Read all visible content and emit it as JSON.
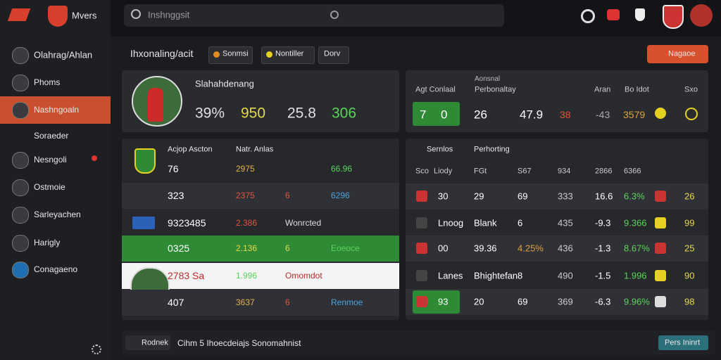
{
  "brand": "Mvers",
  "search": "Inshnggsit",
  "sidebar": [
    "Olahrag/Ahlan",
    "Phoms",
    "Nashngoaln",
    "Soraeder",
    "Nesngoli",
    "Ostmoie",
    "Sarleyachen",
    "Harigly",
    "Conagaeno"
  ],
  "header": {
    "title": "Ihxonaling/acit",
    "chips": [
      "Sonmsi",
      "Nontiller",
      "Dorv"
    ],
    "button": "Nagaoe"
  },
  "player": {
    "name": "Slahahdenang",
    "stats": [
      "39%",
      "950",
      "25.8",
      "306"
    ]
  },
  "summary": {
    "caption": "Aonsnal",
    "columns": [
      "Agt Conlaal",
      "Perbonaltay",
      "Aran",
      "Bo Idot",
      "Sxo"
    ],
    "row": [
      "7",
      "0",
      "26",
      "47.9",
      "38",
      "-43",
      "3579"
    ]
  },
  "left_table": {
    "columns": [
      "Acjop Ascton",
      "Natr. Anlas"
    ],
    "rows": [
      [
        "76",
        "2975",
        "66.96"
      ],
      [
        "323",
        "2375",
        "6",
        "6296"
      ],
      [
        "9323485",
        "2.386",
        "Wonrcted"
      ],
      [
        "0325",
        "2.136",
        "6",
        "Eoeoce"
      ],
      [
        "2783 Sa",
        "1.996",
        "Omomdot"
      ],
      [
        "407",
        "3637",
        "6",
        "Renmoe"
      ]
    ]
  },
  "right_table": {
    "title": "Sernlos",
    "subtitle": "Perhorting",
    "columns": [
      "Sco",
      "Liody",
      "FGt",
      "S67",
      "934",
      "2866",
      "6366"
    ],
    "rows": [
      [
        "30",
        "29",
        "69",
        "333",
        "16.6",
        "6.3%",
        "26"
      ],
      [
        "Lnoog",
        "Blank",
        "6",
        "435",
        "-9.3",
        "9.366",
        "99"
      ],
      [
        "00",
        "39.36",
        "4.25%",
        "436",
        "-1.3",
        "8.67%",
        "25"
      ],
      [
        "Lanes",
        "Bhightefan",
        "8",
        "490",
        "-1.5",
        "1.996",
        "90"
      ],
      [
        "93",
        "20",
        "69",
        "369",
        "-6.3",
        "9.96%",
        "98"
      ]
    ]
  },
  "footer": {
    "tag": "Rodnek",
    "text": "Cihm 5 Ihoecdeiajs Sonomahnist",
    "button": "Pers Ininrt"
  }
}
